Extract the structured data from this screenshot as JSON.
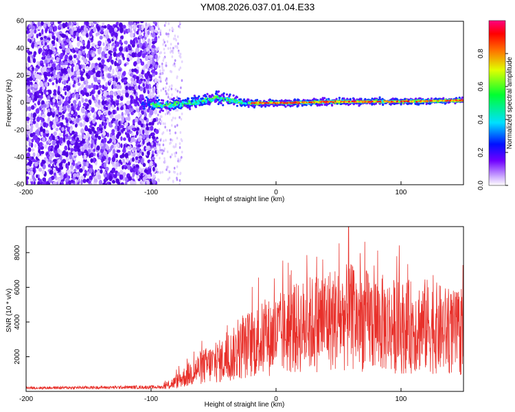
{
  "title": "YM08.2026.037.01.04.E33",
  "chart_data": [
    {
      "type": "heatmap",
      "xlabel": "Height of straight line (km)",
      "ylabel": "Frequency (Hz)",
      "xlim": [
        -200,
        150
      ],
      "ylim": [
        -60,
        60
      ],
      "xticks": [
        -200,
        -100,
        0,
        100
      ],
      "yticks": [
        -60,
        -40,
        -20,
        0,
        20,
        40,
        60
      ],
      "colorbar": {
        "label": "Normalized spectral amplitude",
        "range": [
          0,
          1
        ],
        "ticks": [
          "0.0",
          "0.2",
          "0.4",
          "0.6",
          "0.8"
        ]
      },
      "band_center_hz": [
        {
          "x": -110,
          "y": 0
        },
        {
          "x": -90,
          "y": -2
        },
        {
          "x": -70,
          "y": 0
        },
        {
          "x": -55,
          "y": 2
        },
        {
          "x": -48,
          "y": 4
        },
        {
          "x": -40,
          "y": 3
        },
        {
          "x": -25,
          "y": 0
        },
        {
          "x": 0,
          "y": 0
        },
        {
          "x": 50,
          "y": 1
        },
        {
          "x": 100,
          "y": 1
        },
        {
          "x": 150,
          "y": 2
        }
      ]
    },
    {
      "type": "line",
      "xlabel": "Height of straight line (km)",
      "ylabel": "SNR (10 * v/v)",
      "xlim": [
        -200,
        150
      ],
      "ylim": [
        0,
        9500
      ],
      "xticks": [
        -200,
        -100,
        0,
        100
      ],
      "yticks": [
        2000,
        4000,
        6000,
        8000
      ],
      "series": [
        {
          "name": "SNR",
          "color": "#e8302a"
        }
      ],
      "envelope": [
        {
          "x": -200,
          "y": 200
        },
        {
          "x": -90,
          "y": 250
        },
        {
          "x": -80,
          "y": 600
        },
        {
          "x": -60,
          "y": 1500
        },
        {
          "x": -40,
          "y": 2000
        },
        {
          "x": -20,
          "y": 3000
        },
        {
          "x": 0,
          "y": 3500
        },
        {
          "x": 20,
          "y": 4000
        },
        {
          "x": 40,
          "y": 4500
        },
        {
          "x": 60,
          "y": 4600
        },
        {
          "x": 80,
          "y": 4300
        },
        {
          "x": 100,
          "y": 4000
        },
        {
          "x": 120,
          "y": 4100
        },
        {
          "x": 150,
          "y": 3500
        }
      ],
      "peak": {
        "x": 58,
        "y": 9500
      }
    }
  ]
}
